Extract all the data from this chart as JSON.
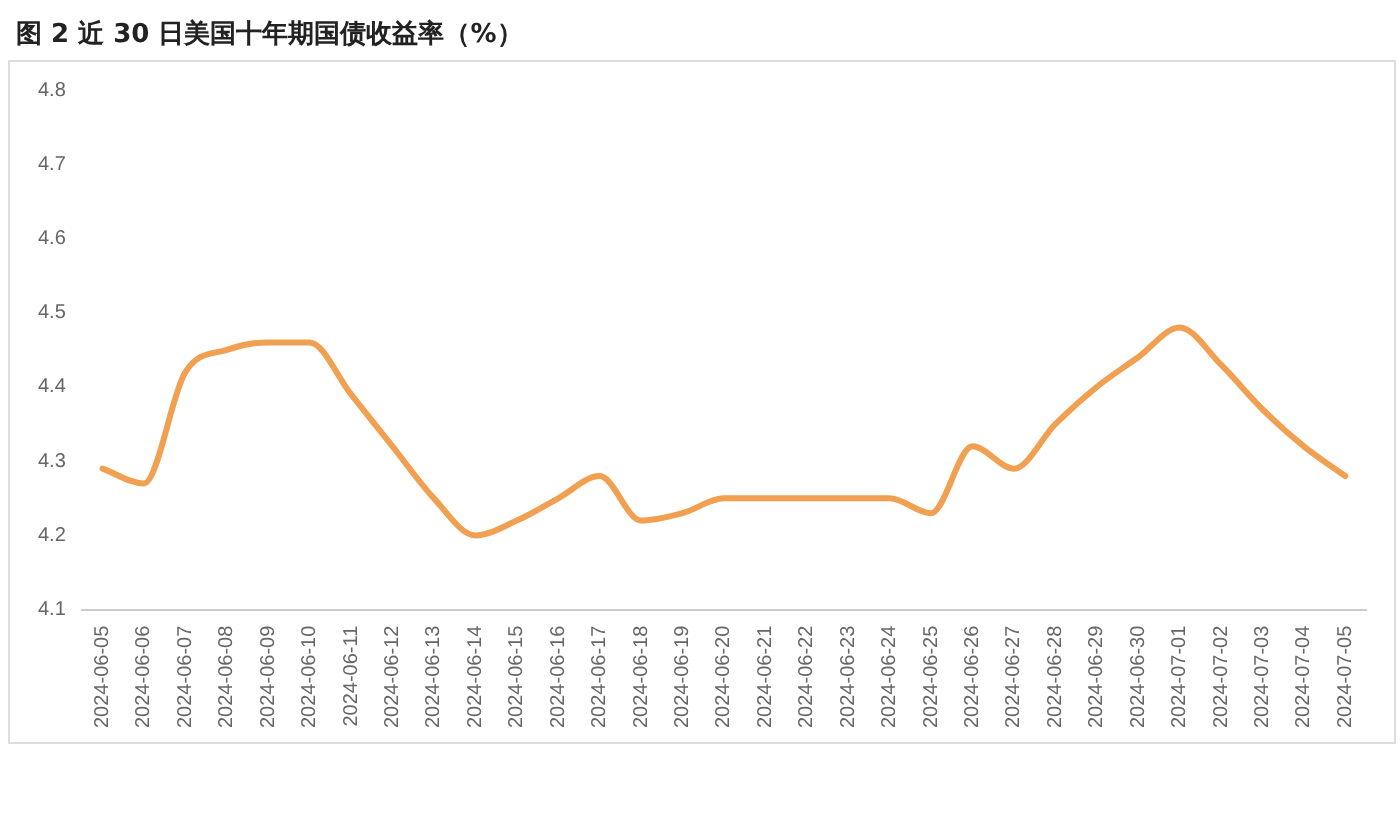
{
  "chart_data": {
    "type": "line",
    "title": "图 2  近 30 日美国十年期国债收益率（%）",
    "categories": [
      "2024-06-05",
      "2024-06-06",
      "2024-06-07",
      "2024-06-08",
      "2024-06-09",
      "2024-06-10",
      "2024-06-11",
      "2024-06-12",
      "2024-06-13",
      "2024-06-14",
      "2024-06-15",
      "2024-06-16",
      "2024-06-17",
      "2024-06-18",
      "2024-06-19",
      "2024-06-20",
      "2024-06-21",
      "2024-06-22",
      "2024-06-23",
      "2024-06-24",
      "2024-06-25",
      "2024-06-26",
      "2024-06-27",
      "2024-06-28",
      "2024-06-29",
      "2024-06-30",
      "2024-07-01",
      "2024-07-02",
      "2024-07-03",
      "2024-07-04",
      "2024-07-05"
    ],
    "series": [
      {
        "color": "#f0a050",
        "values": [
          4.29,
          4.27,
          4.42,
          4.45,
          4.46,
          4.46,
          4.39,
          4.32,
          4.25,
          4.2,
          4.22,
          4.25,
          4.28,
          4.22,
          4.23,
          4.25,
          4.25,
          4.25,
          4.25,
          4.25,
          4.23,
          4.32,
          4.29,
          4.35,
          4.4,
          4.44,
          4.48,
          4.43,
          4.37,
          4.32,
          4.28
        ]
      }
    ],
    "ylim": [
      4.1,
      4.8
    ],
    "yticks": [
      4.1,
      4.2,
      4.3,
      4.4,
      4.5,
      4.6,
      4.7,
      4.8
    ],
    "grid": false,
    "legend": false,
    "marker": "none",
    "line_style": "solid"
  }
}
